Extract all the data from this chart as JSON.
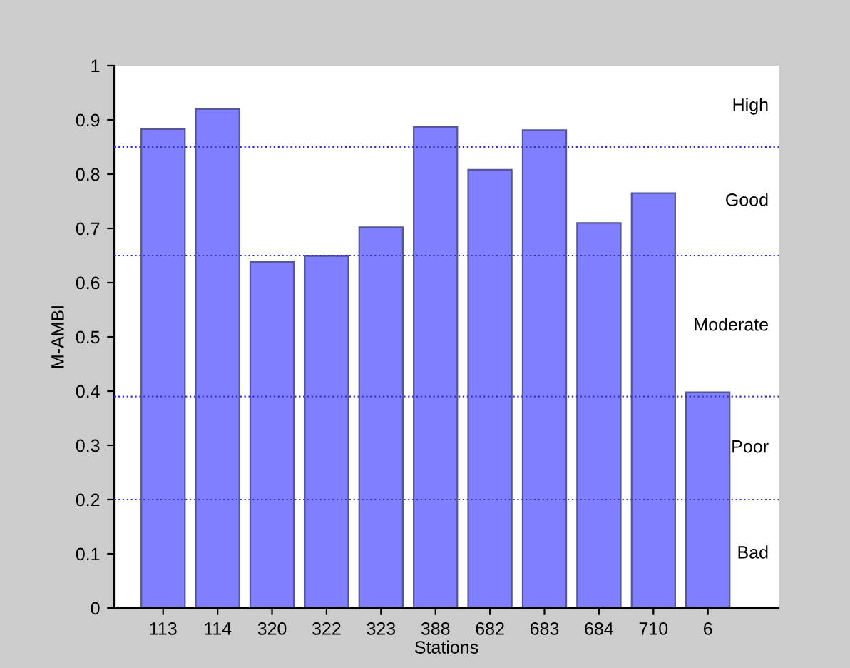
{
  "chart_data": {
    "type": "bar",
    "xlabel": "Stations",
    "ylabel": "M-AMBI",
    "categories": [
      "113",
      "114",
      "320",
      "322",
      "323",
      "388",
      "682",
      "683",
      "684",
      "710",
      "6"
    ],
    "values": [
      0.883,
      0.92,
      0.638,
      0.649,
      0.702,
      0.887,
      0.808,
      0.881,
      0.71,
      0.765,
      0.398
    ],
    "color": "#7f7fff",
    "ylim": [
      0,
      1
    ],
    "yticks": [
      0,
      0.1,
      0.2,
      0.3,
      0.4,
      0.5,
      0.6,
      0.7,
      0.8,
      0.9,
      1
    ],
    "grid": false,
    "ref_lines": [
      {
        "axis": "y",
        "value": 0.85,
        "color": "#3333cc",
        "line_style": "dotted"
      },
      {
        "axis": "y",
        "value": 0.65,
        "color": "#3333cc",
        "line_style": "dotted"
      },
      {
        "axis": "y",
        "value": 0.39,
        "color": "#3333cc",
        "line_style": "dotted"
      },
      {
        "axis": "y",
        "value": 0.2,
        "color": "#3333cc",
        "line_style": "dotted"
      }
    ],
    "annotations": [
      "High",
      "Good",
      "Moderate",
      "Poor",
      "Bad"
    ]
  }
}
